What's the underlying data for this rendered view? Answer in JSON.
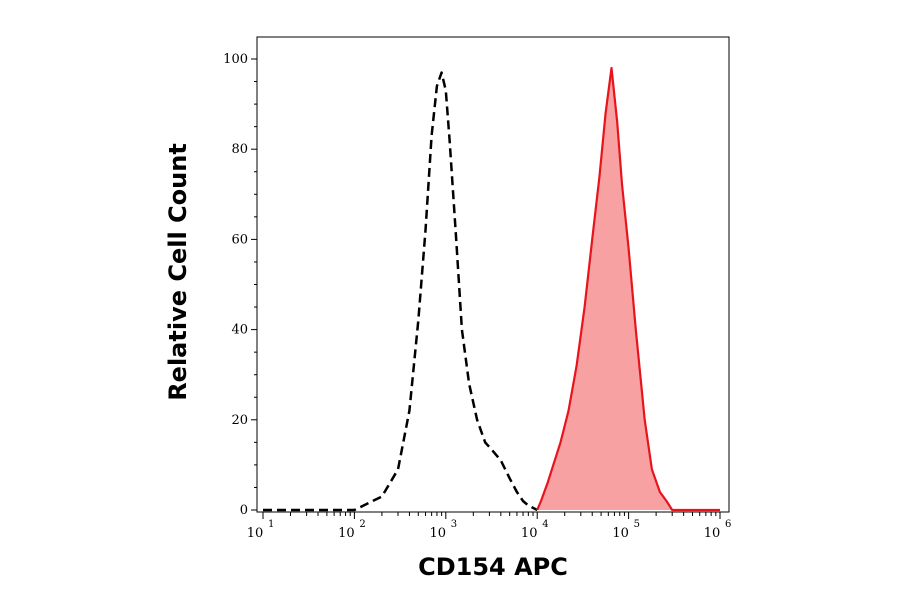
{
  "chart_data": {
    "type": "area",
    "xlabel": "CD154 APC",
    "ylabel": "Relative Cell Count",
    "x_scale": "log10",
    "xlim": [
      10,
      1000000
    ],
    "ylim": [
      0,
      100
    ],
    "grid": false,
    "y_ticks": [
      "0",
      "20",
      "40",
      "60",
      "80",
      "100"
    ],
    "x_ticks": [
      {
        "base": "10",
        "exp": "1"
      },
      {
        "base": "10",
        "exp": "2"
      },
      {
        "base": "10",
        "exp": "3"
      },
      {
        "base": "10",
        "exp": "4"
      },
      {
        "base": "10",
        "exp": "5"
      },
      {
        "base": "10",
        "exp": "6"
      }
    ],
    "series": [
      {
        "style": "dashed",
        "color": "#000000",
        "fill": "none",
        "x": [
          10,
          100,
          200,
          300,
          400,
          500,
          600,
          700,
          800,
          900,
          1000,
          1100,
          1300,
          1500,
          1800,
          2200,
          2700,
          3300,
          4000,
          5000,
          6000,
          7000,
          8000,
          10000
        ],
        "y": [
          0,
          0,
          3,
          9,
          22,
          42,
          62,
          83,
          94,
          97,
          93,
          82,
          60,
          40,
          28,
          20,
          15,
          13,
          11,
          7,
          4,
          2,
          1,
          0
        ]
      },
      {
        "style": "solid",
        "color": "#e8141b",
        "fill": "#f7a1a3",
        "x": [
          10000,
          11000,
          13000,
          15000,
          18000,
          22000,
          27000,
          33000,
          40000,
          48000,
          56000,
          65000,
          75000,
          85000,
          100000,
          120000,
          150000,
          180000,
          220000,
          260000,
          300000,
          1000000
        ],
        "y": [
          0,
          2,
          6,
          10,
          15,
          22,
          32,
          45,
          60,
          74,
          88,
          98,
          86,
          72,
          58,
          40,
          20,
          9,
          4,
          2,
          0,
          0
        ]
      }
    ]
  }
}
